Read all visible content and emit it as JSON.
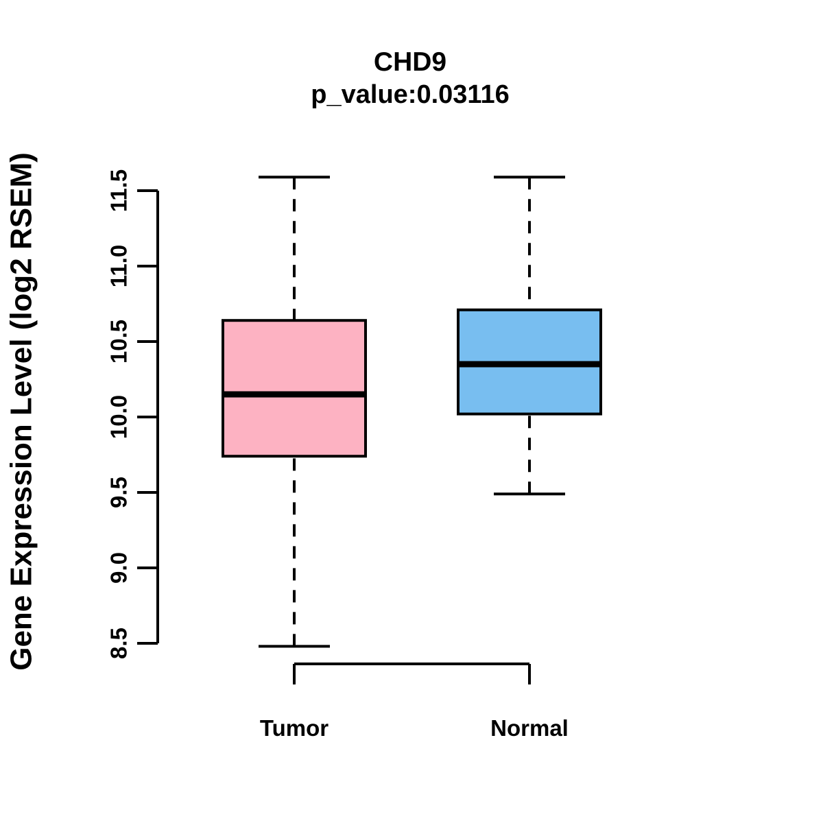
{
  "header": {
    "title": "CHD9",
    "subtitle": "p_value:0.03116"
  },
  "chart_data": {
    "type": "boxplot",
    "title": "CHD9",
    "subtitle": "p_value:0.03116",
    "gene": "CHD9",
    "p_value": 0.03116,
    "ylabel": "Gene Expression Level (log2 RSEM)",
    "xlabel": "",
    "categories": [
      "Tumor",
      "Normal"
    ],
    "yticks": [
      "8.5",
      "9.0",
      "9.5",
      "10.0",
      "10.5",
      "11.0",
      "11.5"
    ],
    "ylim": [
      8.5,
      11.5
    ],
    "grid": false,
    "legend_position": "none",
    "axis_color": "#000000",
    "text_color": "#000000",
    "series": [
      {
        "name": "Tumor",
        "color": "#FDB2C2",
        "whisker_low": 8.48,
        "q1": 9.74,
        "median": 10.15,
        "q3": 10.64,
        "whisker_high": 11.59
      },
      {
        "name": "Normal",
        "color": "#78BEF0",
        "whisker_low": 9.49,
        "q1": 10.02,
        "median": 10.35,
        "q3": 10.71,
        "whisker_high": 11.59
      }
    ]
  }
}
